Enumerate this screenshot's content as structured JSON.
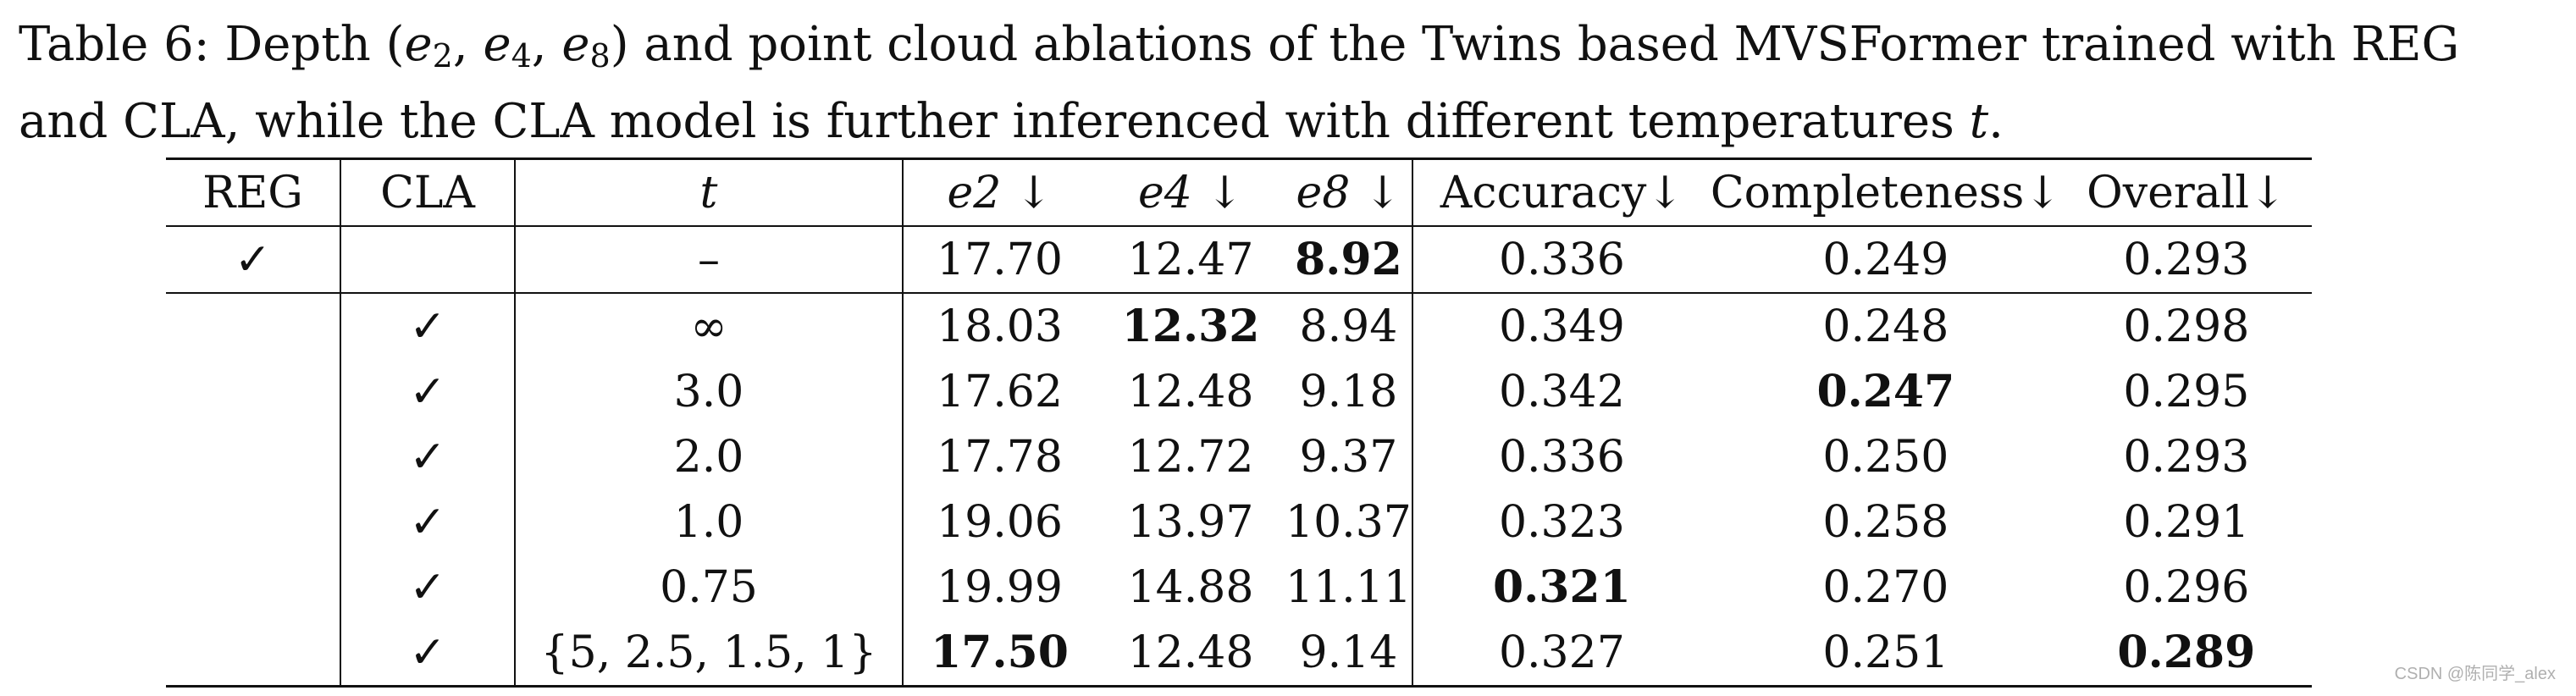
{
  "caption": {
    "prefix": "Table 6: Depth (",
    "e2": "e",
    "e2_sub": "2",
    "comma1": ", ",
    "e4": "e",
    "e4_sub": "4",
    "comma2": ", ",
    "e8": "e",
    "e8_sub": "8",
    "suffix": ") and point cloud ablations of the Twins based MVSFormer trained with REG and CLA, while the CLA model is further inferenced with different temperatures ",
    "t": "t",
    "end": "."
  },
  "table": {
    "headers": [
      "REG",
      "CLA",
      "t",
      "e2 ↓",
      "e4 ↓",
      "e8 ↓",
      "Accuracy↓",
      "Completeness↓",
      "Overall↓"
    ],
    "rows": [
      {
        "reg": "✓",
        "cla": "",
        "t": "–",
        "e2": "17.70",
        "e4": "12.47",
        "e8": "8.92",
        "acc": "0.336",
        "comp": "0.249",
        "overall": "0.293"
      },
      {
        "reg": "",
        "cla": "✓",
        "t": "∞",
        "e2": "18.03",
        "e4": "12.32",
        "e8": "8.94",
        "acc": "0.349",
        "comp": "0.248",
        "overall": "0.298"
      },
      {
        "reg": "",
        "cla": "✓",
        "t": "3.0",
        "e2": "17.62",
        "e4": "12.48",
        "e8": "9.18",
        "acc": "0.342",
        "comp": "0.247",
        "overall": "0.295"
      },
      {
        "reg": "",
        "cla": "✓",
        "t": "2.0",
        "e2": "17.78",
        "e4": "12.72",
        "e8": "9.37",
        "acc": "0.336",
        "comp": "0.250",
        "overall": "0.293"
      },
      {
        "reg": "",
        "cla": "✓",
        "t": "1.0",
        "e2": "19.06",
        "e4": "13.97",
        "e8": "10.37",
        "acc": "0.323",
        "comp": "0.258",
        "overall": "0.291"
      },
      {
        "reg": "",
        "cla": "✓",
        "t": "0.75",
        "e2": "19.99",
        "e4": "14.88",
        "e8": "11.11",
        "acc": "0.321",
        "comp": "0.270",
        "overall": "0.296"
      },
      {
        "reg": "",
        "cla": "✓",
        "t": "{5, 2.5, 1.5, 1}",
        "e2": "17.50",
        "e4": "12.48",
        "e8": "9.14",
        "acc": "0.327",
        "comp": "0.251",
        "overall": "0.289"
      }
    ]
  },
  "watermark": "CSDN @陈同学_alex"
}
